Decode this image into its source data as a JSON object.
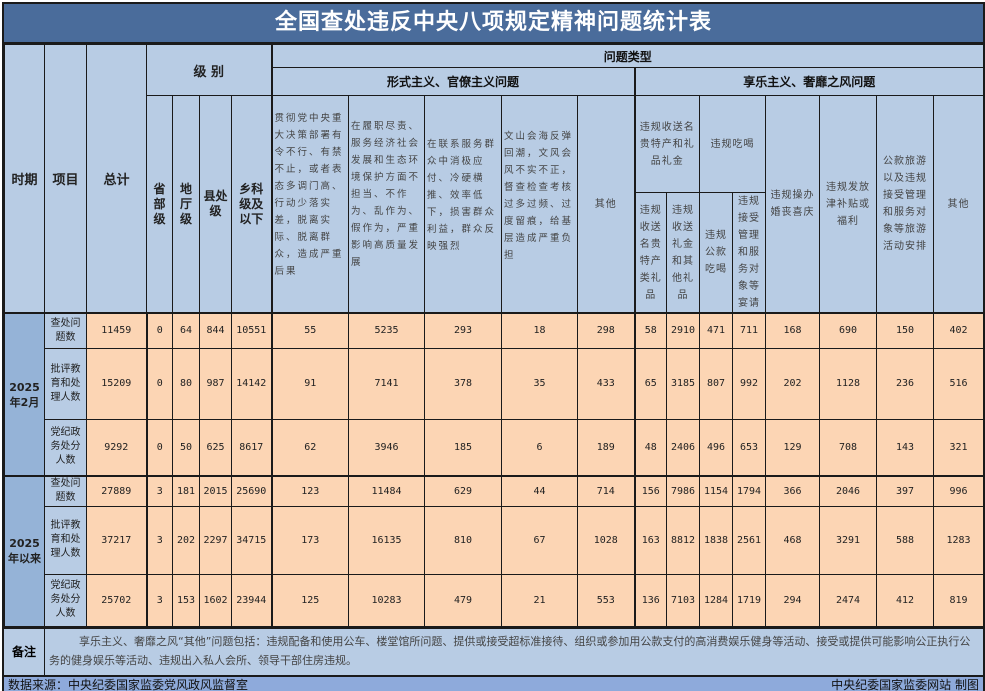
{
  "title": "全国查处违反中央八项规定精神问题统计表",
  "header": {
    "period": "时期",
    "item": "项目",
    "total": "总计",
    "level": "级 别",
    "problem_type": "问题类型",
    "levels": [
      "省部级",
      "地厅级",
      "县处级",
      "乡科级及以下"
    ],
    "formalism": {
      "title": "形式主义、官僚主义问题",
      "columns": [
        "贯彻党中央重大决策部署有令不行、有禁不止，或者表态多调门高、行动少落实差，脱离实际、脱离群众，造成严重后果",
        "在履职尽责、服务经济社会发展和生态环境保护方面不担当、不作为、乱作为、假作为，严重影响高质量发展",
        "在联系服务群众中消极应付、冷硬横推、效率低下，损害群众利益，群众反映强烈",
        "文山会海反弹回潮，文风会风不实不正，督查检查考核过多过频、过度留痕，给基层造成严重负担",
        "其他"
      ]
    },
    "hedonism": {
      "title": "享乐主义、奢靡之风问题",
      "gift_group": "违规收送名贵特产和礼品礼金",
      "gift_sub": [
        "违规收送名贵特产类礼品",
        "违规收送礼金和其他礼品"
      ],
      "dining_group": "违规吃喝",
      "dining_sub": [
        "违规公款吃喝",
        "违规接受管理和服务对象等宴请"
      ],
      "columns": [
        "违规操办婚丧喜庆",
        "违规发放津补贴或福利",
        "公款旅游以及违规接受管理和服务对象等旅游活动安排",
        "其他"
      ]
    }
  },
  "periods": [
    {
      "label": "2025年2月",
      "rows": [
        {
          "item": "查处问题数",
          "values": [
            11459,
            0,
            64,
            844,
            10551,
            55,
            5235,
            293,
            18,
            298,
            58,
            2910,
            471,
            711,
            168,
            690,
            150,
            402
          ]
        },
        {
          "item": "批评教育和处理人数",
          "values": [
            15209,
            0,
            80,
            987,
            14142,
            91,
            7141,
            378,
            35,
            433,
            65,
            3185,
            807,
            992,
            202,
            1128,
            236,
            516
          ]
        },
        {
          "item": "党纪政务处分人数",
          "values": [
            9292,
            0,
            50,
            625,
            8617,
            62,
            3946,
            185,
            6,
            189,
            48,
            2406,
            496,
            653,
            129,
            708,
            143,
            321
          ]
        }
      ]
    },
    {
      "label": "2025年以来",
      "rows": [
        {
          "item": "查处问题数",
          "values": [
            27889,
            3,
            181,
            2015,
            25690,
            123,
            11484,
            629,
            44,
            714,
            156,
            7986,
            1154,
            1794,
            366,
            2046,
            397,
            996
          ]
        },
        {
          "item": "批评教育和处理人数",
          "values": [
            37217,
            3,
            202,
            2297,
            34715,
            173,
            16135,
            810,
            67,
            1028,
            163,
            8812,
            1838,
            2561,
            468,
            3291,
            588,
            1283
          ]
        },
        {
          "item": "党纪政务处分人数",
          "values": [
            25702,
            3,
            153,
            1602,
            23944,
            125,
            10283,
            479,
            21,
            553,
            136,
            7103,
            1284,
            1719,
            294,
            2474,
            412,
            819
          ]
        }
      ]
    }
  ],
  "note": {
    "label": "备注",
    "text": "享乐主义、奢靡之风“其他”问题包括：违规配备和使用公车、楼堂馆所问题、提供或接受超标准接待、组织或参加用公款支付的高消费娱乐健身等活动、接受或提供可能影响公正执行公务的健身娱乐等活动、违规出入私人会所、领导干部住房违规。"
  },
  "footer": {
    "source": "数据来源：中央纪委国家监委党风政风监督室",
    "credit": "中央纪委国家监委网站 制图"
  },
  "colors": {
    "title_bar": "#4a6c9b",
    "header": "#b8cce4",
    "period": "#95b3d7",
    "data": "#fcd5b4",
    "footer": "#8eaadb"
  }
}
